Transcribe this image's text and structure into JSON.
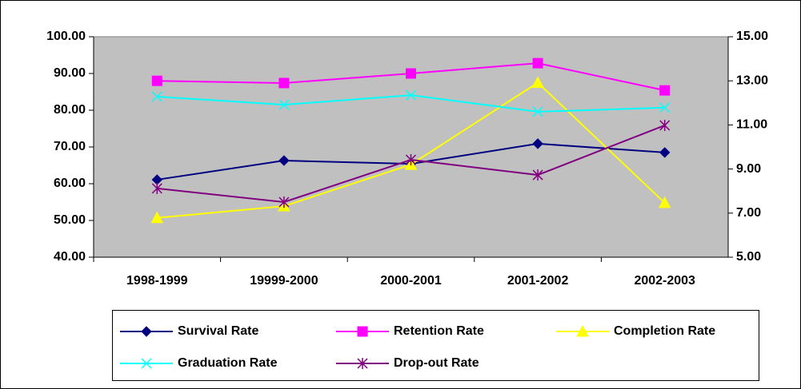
{
  "chart_data": {
    "type": "line",
    "categories": [
      "1998-1999",
      "19999-2000",
      "2000-2001",
      "2001-2002",
      "2002-2003"
    ],
    "series": [
      {
        "name": "Survival Rate",
        "color": "#000080",
        "marker": "diamond",
        "values": [
          61.1,
          66.3,
          65.4,
          70.9,
          68.5
        ]
      },
      {
        "name": "Retention Rate",
        "color": "#ff00ff",
        "marker": "square",
        "values": [
          88.0,
          87.4,
          90.0,
          92.8,
          85.4
        ]
      },
      {
        "name": "Completion Rate",
        "color": "#ffff00",
        "marker": "triangle",
        "values": [
          50.7,
          53.9,
          65.2,
          87.5,
          54.8
        ]
      },
      {
        "name": "Graduation Rate",
        "color": "#00ffff",
        "marker": "x",
        "values": [
          83.7,
          81.5,
          84.1,
          79.6,
          80.7
        ]
      },
      {
        "name": "Drop-out Rate",
        "color": "#800080",
        "marker": "star",
        "axis": "y2",
        "values": [
          8.12,
          7.5,
          9.42,
          8.73,
          10.98
        ]
      }
    ],
    "ylim": [
      40,
      100
    ],
    "yticks": [
      {
        "value": 40,
        "label": "40.00"
      },
      {
        "value": 50,
        "label": "50.00"
      },
      {
        "value": 60,
        "label": "60.00"
      },
      {
        "value": 70,
        "label": "70.00"
      },
      {
        "value": 80,
        "label": "80.00"
      },
      {
        "value": 90,
        "label": "90.00"
      },
      {
        "value": 100,
        "label": "100.00"
      }
    ],
    "y2lim": [
      5,
      15
    ],
    "y2ticks": [
      {
        "value": 5,
        "label": "5.00"
      },
      {
        "value": 7,
        "label": "7.00"
      },
      {
        "value": 9,
        "label": "9.00"
      },
      {
        "value": 11,
        "label": "11.00"
      },
      {
        "value": 13,
        "label": "13.00"
      },
      {
        "value": 15,
        "label": "15.00"
      }
    ],
    "plot_background": "#c0c0c0"
  }
}
